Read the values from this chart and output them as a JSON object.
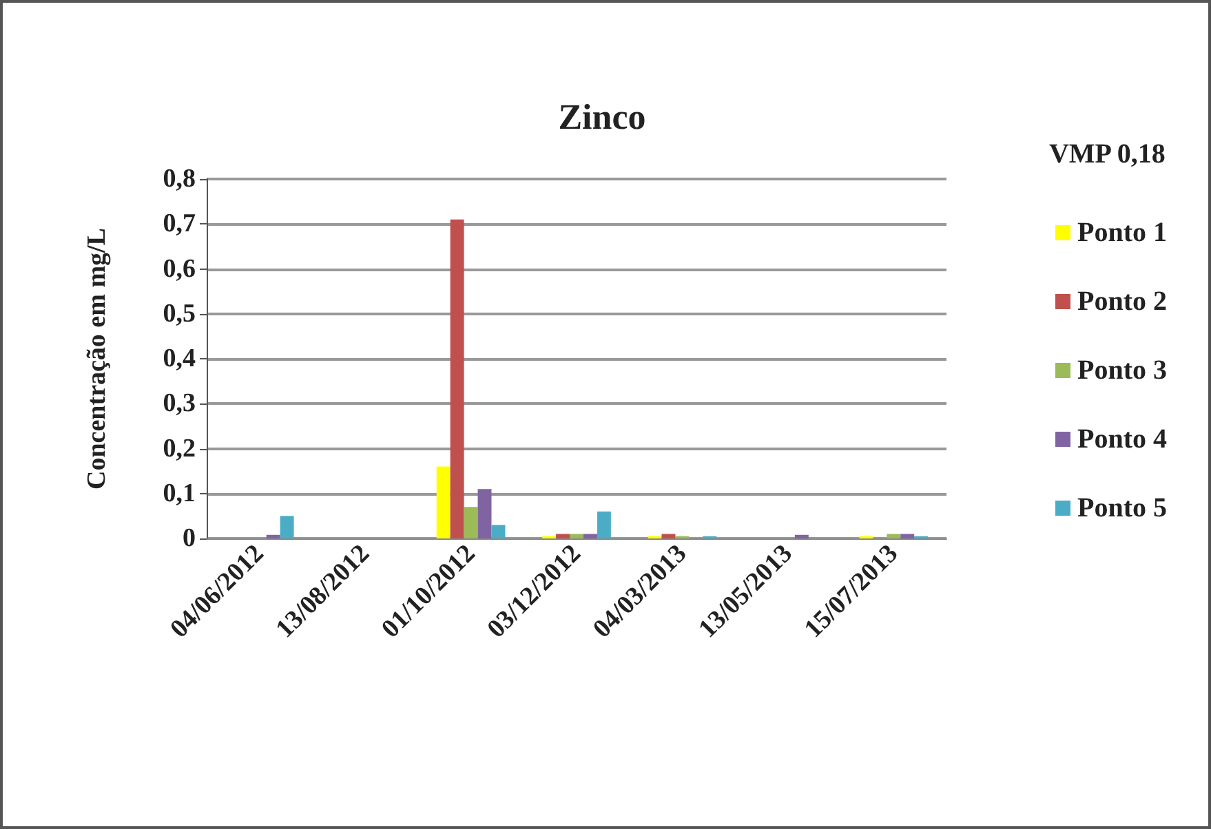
{
  "chart_data": {
    "type": "bar",
    "title": "Zinco",
    "ylabel": "Concentração em mg/L",
    "annotations": [
      "VMP 0,18"
    ],
    "categories": [
      "04/06/2012",
      "13/08/2012",
      "01/10/2012",
      "03/12/2012",
      "04/03/2013",
      "13/05/2013",
      "15/07/2013"
    ],
    "series": [
      {
        "name": "Ponto 1",
        "color": "#ffff00",
        "values": [
          null,
          null,
          0.16,
          0.005,
          0.005,
          null,
          0.005
        ]
      },
      {
        "name": "Ponto 2",
        "color": "#c0504d",
        "values": [
          null,
          null,
          0.71,
          0.01,
          0.01,
          null,
          null
        ]
      },
      {
        "name": "Ponto 3",
        "color": "#9bbb59",
        "values": [
          null,
          null,
          0.07,
          0.01,
          0.005,
          null,
          0.01
        ]
      },
      {
        "name": "Ponto 4",
        "color": "#8064a2",
        "values": [
          0.008,
          null,
          0.11,
          0.01,
          null,
          0.008,
          0.01
        ]
      },
      {
        "name": "Ponto 5",
        "color": "#4bacc6",
        "values": [
          0.05,
          null,
          0.03,
          0.06,
          0.005,
          null,
          0.005
        ]
      }
    ],
    "ylim": [
      0,
      0.8
    ],
    "yticks": [
      0,
      {
        "value": 0.1,
        "label": "0,1"
      },
      {
        "value": 0.2,
        "label": "0,2"
      },
      {
        "value": 0.3,
        "label": "0,3"
      },
      {
        "value": 0.4,
        "label": "0,4"
      },
      {
        "value": 0.5,
        "label": "0,5"
      },
      {
        "value": 0.6,
        "label": "0,6"
      },
      {
        "value": 0.7,
        "label": "0,7"
      },
      {
        "value": 0.8,
        "label": "0,8"
      }
    ],
    "grid": "y",
    "legend": "right"
  }
}
